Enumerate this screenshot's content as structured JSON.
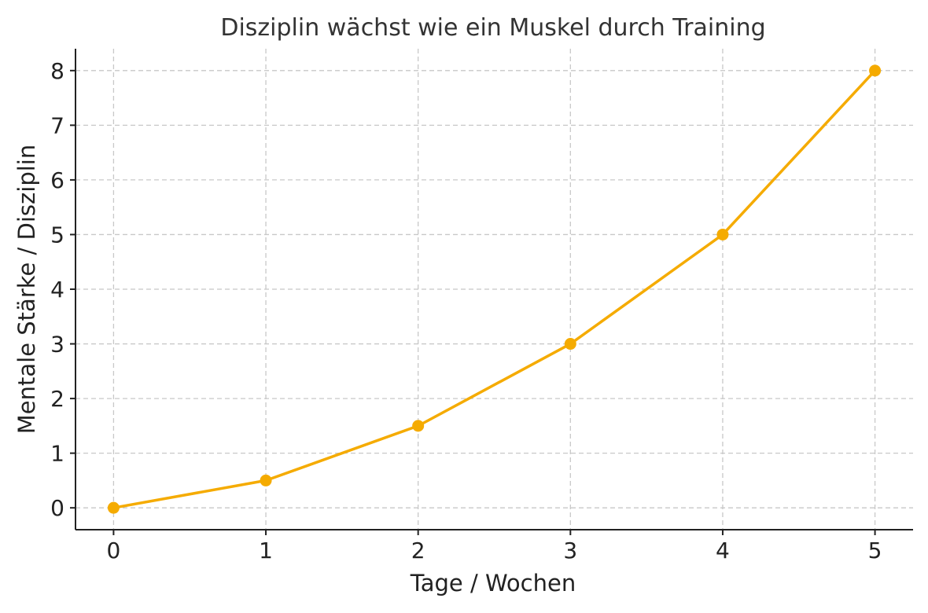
{
  "chart_data": {
    "type": "line",
    "title": "Disziplin wächst wie ein Muskel durch Training",
    "xlabel": "Tage / Wochen",
    "ylabel": "Mentale Stärke / Disziplin",
    "x": [
      0,
      1,
      2,
      3,
      4,
      5
    ],
    "series": [
      {
        "values": [
          0,
          0.5,
          1.5,
          3,
          5,
          8
        ],
        "color": "#f5ab00",
        "marker": "circle"
      }
    ],
    "xticks": [
      "0",
      "1",
      "2",
      "3",
      "4",
      "5"
    ],
    "yticks": [
      "0",
      "1",
      "2",
      "3",
      "4",
      "5",
      "6",
      "7",
      "8"
    ],
    "xlim": [
      -0.25,
      5.25
    ],
    "ylim": [
      -0.4,
      8.4
    ],
    "grid": true,
    "legend": "none"
  }
}
